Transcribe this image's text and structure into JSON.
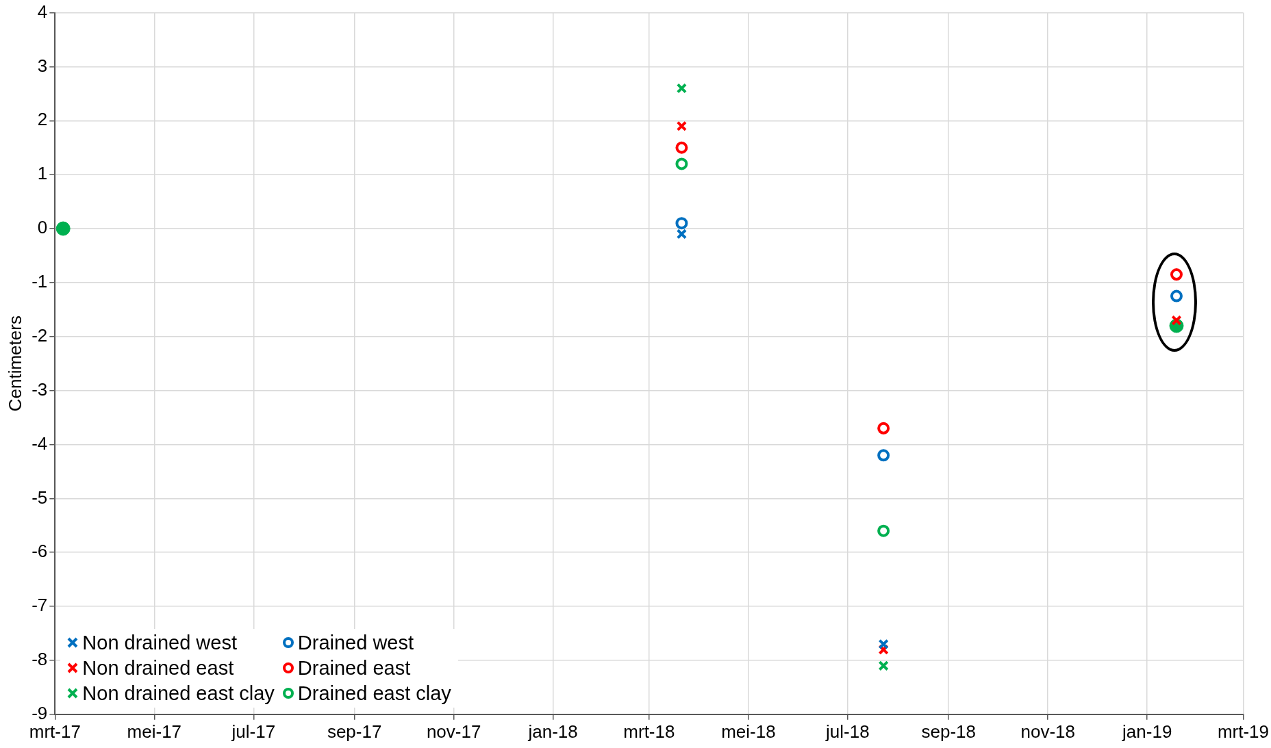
{
  "chart_data": {
    "type": "scatter",
    "ylabel": "Centimeters",
    "x": [
      "2018-03-21",
      "2018-07-23",
      "2019-01-19"
    ],
    "xlim": [
      "2017-03-01",
      "2019-03-01"
    ],
    "xticks": [
      {
        "value": "2017-03-01",
        "label": "mrt-17"
      },
      {
        "value": "2017-05-01",
        "label": "mei-17"
      },
      {
        "value": "2017-07-01",
        "label": "jul-17"
      },
      {
        "value": "2017-09-01",
        "label": "sep-17"
      },
      {
        "value": "2017-11-01",
        "label": "nov-17"
      },
      {
        "value": "2018-01-01",
        "label": "jan-18"
      },
      {
        "value": "2018-03-01",
        "label": "mrt-18"
      },
      {
        "value": "2018-05-01",
        "label": "mei-18"
      },
      {
        "value": "2018-07-01",
        "label": "jul-18"
      },
      {
        "value": "2018-09-01",
        "label": "sep-18"
      },
      {
        "value": "2018-11-01",
        "label": "nov-18"
      },
      {
        "value": "2019-01-01",
        "label": "jan-19"
      },
      {
        "value": "2019-03-01",
        "label": "mrt-19"
      }
    ],
    "ylim": [
      -9,
      4
    ],
    "yticks": [
      -9,
      -8,
      -7,
      -6,
      -5,
      -4,
      -3,
      -2,
      -1,
      0,
      1,
      2,
      3,
      4
    ],
    "grid": true,
    "legend": "bottom left",
    "series": [
      {
        "name": "Non drained west",
        "color": "#0070c0",
        "marker": "cross",
        "values": [
          -0.1,
          -7.7,
          null
        ]
      },
      {
        "name": "Non drained east",
        "color": "#ff0000",
        "marker": "cross",
        "values": [
          1.9,
          -7.8,
          -1.7
        ]
      },
      {
        "name": "Non drained east clay",
        "color": "#00b050",
        "marker": "cross",
        "values": [
          2.6,
          -8.1,
          null
        ]
      },
      {
        "name": "Drained west",
        "color": "#0070c0",
        "marker": "circle",
        "values": [
          0.1,
          -4.2,
          -1.25
        ]
      },
      {
        "name": "Drained east",
        "color": "#ff0000",
        "marker": "circle",
        "values": [
          1.5,
          -3.7,
          -0.85
        ]
      },
      {
        "name": "Drained east clay",
        "color": "#00b050",
        "marker": "circle",
        "values": [
          1.2,
          -5.6,
          null
        ]
      },
      {
        "color": "#00b050",
        "marker": "circle",
        "x": [
          "2017-03-06",
          "2019-01-19"
        ],
        "values": [
          0,
          -1.8
        ]
      }
    ]
  }
}
